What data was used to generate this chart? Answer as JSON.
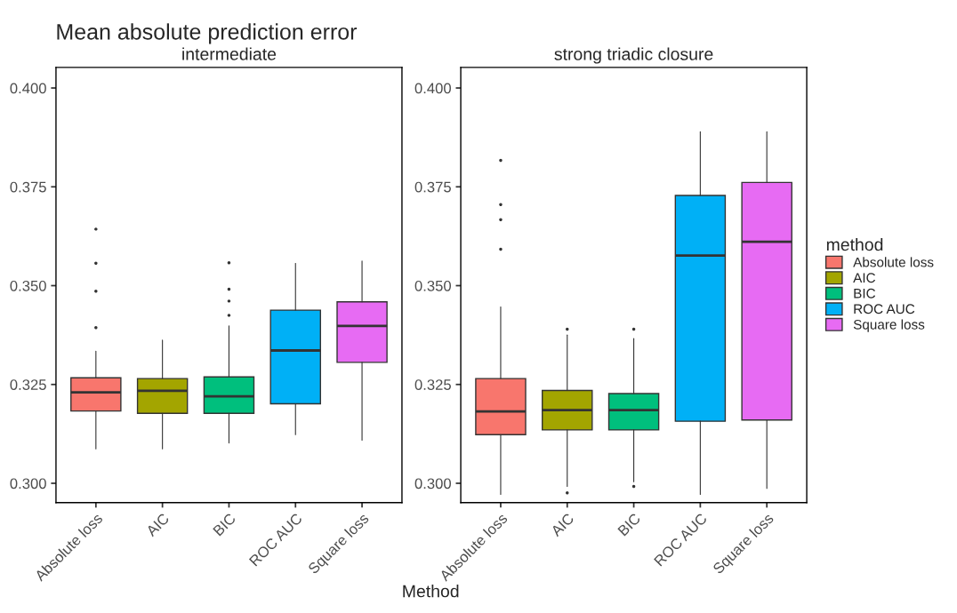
{
  "chart_data": [
    {
      "type": "box",
      "title": "Mean absolute prediction error",
      "subtitle": "intermediate",
      "xlabel": "Method",
      "categories": [
        "Absolute loss",
        "AIC",
        "BIC",
        "ROC AUC",
        "Square loss"
      ],
      "series": [
        {
          "color": "#f8766d",
          "boxes": [
            {
              "low": 0.3087,
              "q1": 0.3183,
              "median": 0.323,
              "q3": 0.3267,
              "high": 0.3334,
              "outliers": [
                0.3394,
                0.3486,
                0.3557,
                0.3643
              ]
            },
            null,
            null,
            null,
            null
          ]
        },
        {
          "color": "#a3a500",
          "boxes": [
            null,
            {
              "low": 0.3087,
              "q1": 0.3177,
              "median": 0.3234,
              "q3": 0.3265,
              "high": 0.3362
            },
            null,
            null,
            null
          ]
        },
        {
          "color": "#00bf7d",
          "boxes": [
            null,
            null,
            {
              "low": 0.3102,
              "q1": 0.3177,
              "median": 0.322,
              "q3": 0.3269,
              "high": 0.3398,
              "outliers": [
                0.3425,
                0.3461,
                0.3491,
                0.3558
              ]
            },
            null,
            null
          ]
        },
        {
          "color": "#00b0f6",
          "boxes": [
            null,
            null,
            null,
            {
              "low": 0.3123,
              "q1": 0.3201,
              "median": 0.3336,
              "q3": 0.3438,
              "high": 0.3556
            },
            null
          ]
        },
        {
          "color": "#e76bf3",
          "boxes": [
            null,
            null,
            null,
            null,
            {
              "low": 0.3109,
              "q1": 0.3306,
              "median": 0.3398,
              "q3": 0.3459,
              "high": 0.3562
            }
          ]
        }
      ],
      "ylim": [
        0.2951,
        0.4052
      ],
      "yticks": [
        {
          "value": 0.3,
          "label": "0.300"
        },
        {
          "value": 0.325,
          "label": "0.325"
        },
        {
          "value": 0.35,
          "label": "0.350"
        },
        {
          "value": 0.375,
          "label": "0.375"
        },
        {
          "value": 0.4,
          "label": "0.400"
        }
      ],
      "grid": false
    },
    {
      "type": "box",
      "subtitle": "strong triadic closure",
      "categories": [
        "Absolute loss",
        "AIC",
        "BIC",
        "ROC AUC",
        "Square loss"
      ],
      "series": [
        {
          "name": "Absolute loss",
          "color": "#f8766d",
          "boxes": [
            {
              "low": 0.2972,
              "q1": 0.3123,
              "median": 0.3182,
              "q3": 0.3265,
              "high": 0.3446,
              "outliers": [
                0.3592,
                0.3667,
                0.3705,
                0.3817
              ]
            },
            null,
            null,
            null,
            null
          ]
        },
        {
          "name": "AIC",
          "color": "#a3a500",
          "boxes": [
            null,
            {
              "low": 0.2992,
              "q1": 0.3135,
              "median": 0.3185,
              "q3": 0.3235,
              "high": 0.3375,
              "outliers": [
                0.2976,
                0.339
              ]
            },
            null,
            null,
            null
          ]
        },
        {
          "name": "BIC",
          "color": "#00bf7d",
          "boxes": [
            null,
            null,
            {
              "low": 0.3004,
              "q1": 0.3135,
              "median": 0.3185,
              "q3": 0.3227,
              "high": 0.3366,
              "outliers": [
                0.2992,
                0.339
              ]
            },
            null,
            null
          ]
        },
        {
          "name": "ROC AUC",
          "color": "#00b0f6",
          "boxes": [
            null,
            null,
            null,
            {
              "low": 0.2972,
              "q1": 0.3157,
              "median": 0.3576,
              "q3": 0.3728,
              "high": 0.3889
            },
            null
          ]
        },
        {
          "name": "Square loss",
          "color": "#e76bf3",
          "boxes": [
            null,
            null,
            null,
            null,
            {
              "low": 0.2987,
              "q1": 0.316,
              "median": 0.3611,
              "q3": 0.3761,
              "high": 0.3889
            }
          ]
        }
      ],
      "ylim": [
        0.2951,
        0.4052
      ],
      "yticks": [
        {
          "value": 0.3,
          "label": "0.300"
        },
        {
          "value": 0.325,
          "label": "0.325"
        },
        {
          "value": 0.35,
          "label": "0.350"
        },
        {
          "value": 0.375,
          "label": "0.375"
        },
        {
          "value": 0.4,
          "label": "0.400"
        }
      ],
      "grid": false,
      "legend": "right",
      "legend_title": "method"
    }
  ]
}
